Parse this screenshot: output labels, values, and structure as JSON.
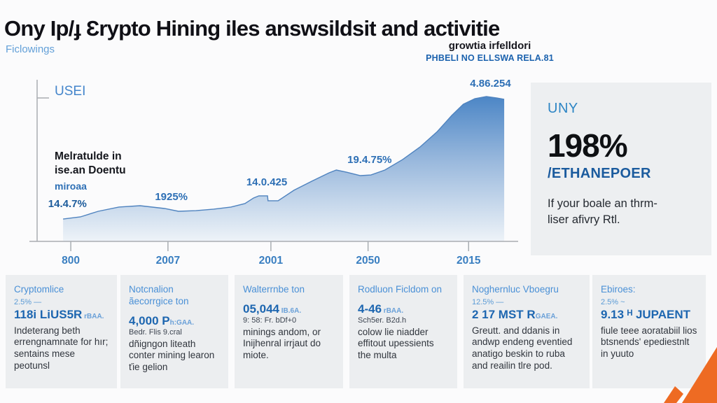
{
  "page": {
    "title": "Ony Ip/ɟ Ɛrypto Hining iles answsildsit and activitie",
    "tagline": "Ficlowings"
  },
  "header_right": {
    "line1": "growtia irfelldori",
    "line2": "PHBELI NO ELLSWA RELA.81"
  },
  "side_panel": {
    "label": "UNY",
    "stat": "198%",
    "stat_caption": "/ETHANEPOER",
    "body_line1": "If your boale an thrm-",
    "body_line2": "liser afivry Rtl."
  },
  "chart_data": {
    "type": "area",
    "title": "",
    "ylabel": "USEI",
    "xlabel": "",
    "annotation_line1": "Melratulde in",
    "annotation_line2": "ise.an Doentu",
    "annotation_line3": "miroaa",
    "categories": [
      "800",
      "2007",
      "2001",
      "2050",
      "2015"
    ],
    "x_tick_pct": [
      7.0,
      27.2,
      48.6,
      68.8,
      89.7
    ],
    "series": [
      {
        "name": "USEI",
        "values_rel_height": [
          15,
          22,
          29,
          47,
          100
        ]
      }
    ],
    "point_labels": [
      {
        "text": "14.4.7%",
        "x_pct": 2.3,
        "y_pct": 73.5,
        "dark": true
      },
      {
        "text": "1925%",
        "x_pct": 24.5,
        "y_pct": 69.5,
        "dark": false
      },
      {
        "text": "14.0.425",
        "x_pct": 43.5,
        "y_pct": 60.5,
        "dark": false
      },
      {
        "text": "19.4.75%",
        "x_pct": 64.5,
        "y_pct": 47.0,
        "dark": false
      },
      {
        "text": "4.86.254",
        "x_pct": 90.0,
        "y_pct": 0.5,
        "dark": false
      }
    ],
    "area_points_pct": [
      [
        5.4,
        86.4
      ],
      [
        9,
        85.1
      ],
      [
        12.7,
        81.7
      ],
      [
        17,
        79.1
      ],
      [
        21.4,
        78.3
      ],
      [
        26.5,
        80
      ],
      [
        29.4,
        81.7
      ],
      [
        33,
        81.3
      ],
      [
        36.7,
        80.4
      ],
      [
        40.3,
        79.1
      ],
      [
        43.2,
        77
      ],
      [
        45,
        73.6
      ],
      [
        46.1,
        72.3
      ],
      [
        47.9,
        72.3
      ],
      [
        48,
        75.3
      ],
      [
        50.1,
        75.3
      ],
      [
        53.4,
        68.9
      ],
      [
        57.1,
        63.4
      ],
      [
        60.7,
        58.3
      ],
      [
        62.2,
        56.6
      ],
      [
        64.3,
        57.9
      ],
      [
        67.2,
        60
      ],
      [
        69.4,
        59.6
      ],
      [
        72.3,
        56.6
      ],
      [
        76,
        50.2
      ],
      [
        79.6,
        42.6
      ],
      [
        83.2,
        33.2
      ],
      [
        86.2,
        23.4
      ],
      [
        88.6,
        16.6
      ],
      [
        91,
        13.2
      ],
      [
        93.4,
        11.9
      ],
      [
        95.6,
        12.8
      ],
      [
        97.1,
        13.6
      ]
    ],
    "grid": false,
    "legend": "none",
    "colors": {
      "area_top": "#4c86c6",
      "area_mid": "#9ab9dd",
      "area_bottom": "#eef3f8",
      "edge": "#4f83bf",
      "axis": "#a9adb2",
      "tick_label": "#3a7fc1"
    }
  },
  "cards": [
    {
      "header": "Cryptomlice",
      "note": "2.5% —",
      "stat": "118i LiUS5R",
      "stat_suffix": " rBAA.",
      "extra": "",
      "body": "Indeterang beth errengnamnate for hır; sentains mese peotunsl"
    },
    {
      "header": "Notcnalion ãecorrgice ton",
      "note": "",
      "stat": "4,000 P",
      "stat_suffix": "h:GAA.",
      "extra": "Bedr. Flis 9.cral",
      "body": "dñigngon liteath conter mining learon ťie gelion"
    },
    {
      "header": "Walterrnbe ton",
      "note": "",
      "stat": "05,044",
      "stat_suffix": " IB.6A.",
      "extra": "9: 58: Fr. bDf+0",
      "body": "minings andom, or Inijhenral irrjaut do miote."
    },
    {
      "header": "Rodluon Ficldom on",
      "note": "",
      "stat": "4-46",
      "stat_suffix": " rBAA.",
      "extra": "Sch5er. B2d.h",
      "body": "colow lie niadder effitout upessients the multa"
    },
    {
      "header": "Noghernluc Vboegru",
      "note": "12.5% —",
      "stat": "2 17 MST R",
      "stat_suffix": "GAEA.",
      "extra": "",
      "body": "Greutt. and ddanis in andwp endeng eventied anatigo beskin to ruba and reailin tlre pod."
    },
    {
      "header": "Ebiroes:",
      "note": "2.5% ~",
      "stat": "9.13 ᴴ JUPAENT",
      "stat_suffix": "",
      "extra": "",
      "body": "fiule teee aoratabiil lios btsnends' epediestnlt in yuuto"
    }
  ],
  "accent": {
    "orange": "#ee6b23"
  }
}
